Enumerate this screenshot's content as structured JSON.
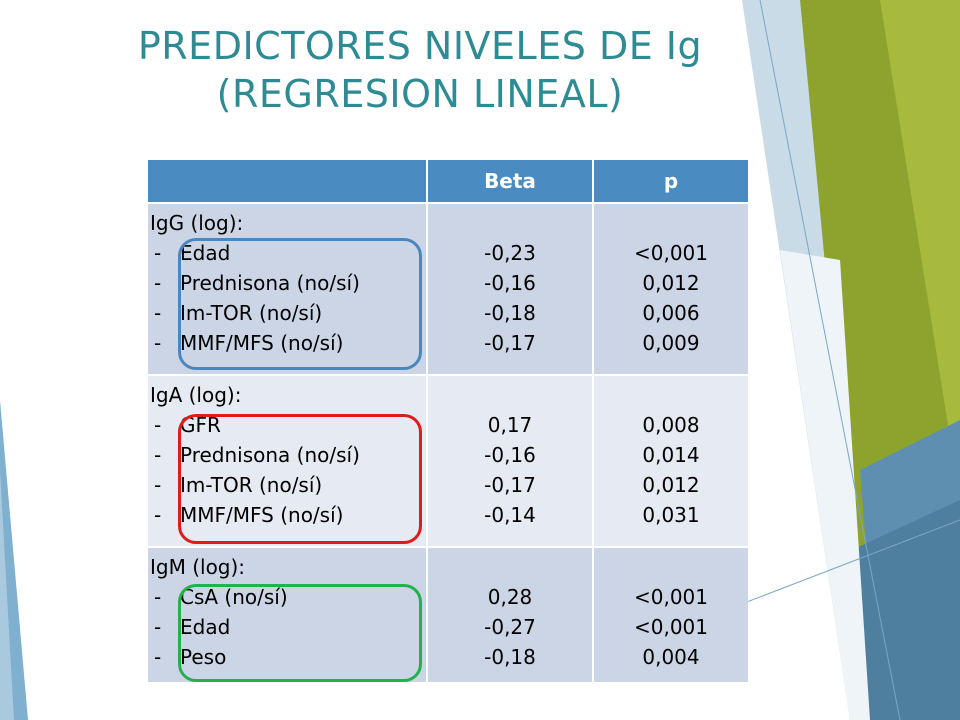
{
  "title_line1": "PREDICTORES NIVELES DE Ig",
  "title_line2": "(REGRESION LINEAL)",
  "table": {
    "headers": [
      "",
      "Beta",
      "p"
    ],
    "groups": [
      {
        "heading": "IgG (log):",
        "variables": [
          "Edad",
          "Prednisona (no/sí)",
          "Im-TOR (no/sí)",
          "MMF/MFS (no/sí)"
        ],
        "beta": [
          "-0,23",
          "-0,16",
          "-0,18",
          "-0,17"
        ],
        "p": [
          "<0,001",
          "0,012",
          "0,006",
          "0,009"
        ],
        "highlight_color": "#4a86c0"
      },
      {
        "heading": "IgA (log):",
        "variables": [
          "GFR",
          "Prednisona (no/sí)",
          "Im-TOR (no/sí)",
          "MMF/MFS (no/sí)"
        ],
        "beta": [
          "0,17",
          "-0,16",
          "-0,17",
          "-0,14"
        ],
        "p": [
          "0,008",
          "0,014",
          "0,012",
          "0,031"
        ],
        "highlight_color": "#e11b1b"
      },
      {
        "heading": "IgM (log):",
        "variables": [
          "CsA (no/sí)",
          "Edad",
          "Peso"
        ],
        "beta": [
          "0,28",
          "-0,27",
          "-0,18"
        ],
        "p": [
          "<0,001",
          "<0,001",
          "0,004"
        ],
        "highlight_color": "#22b14c"
      }
    ]
  },
  "dash": "-",
  "colors": {
    "title": "#2e8a93",
    "header_bg": "#4a8cc2",
    "row_dark": "#ccd5e5",
    "row_light": "#e6eaf2",
    "deco_green": "#8da32d",
    "deco_blue": "#5b93b8"
  }
}
